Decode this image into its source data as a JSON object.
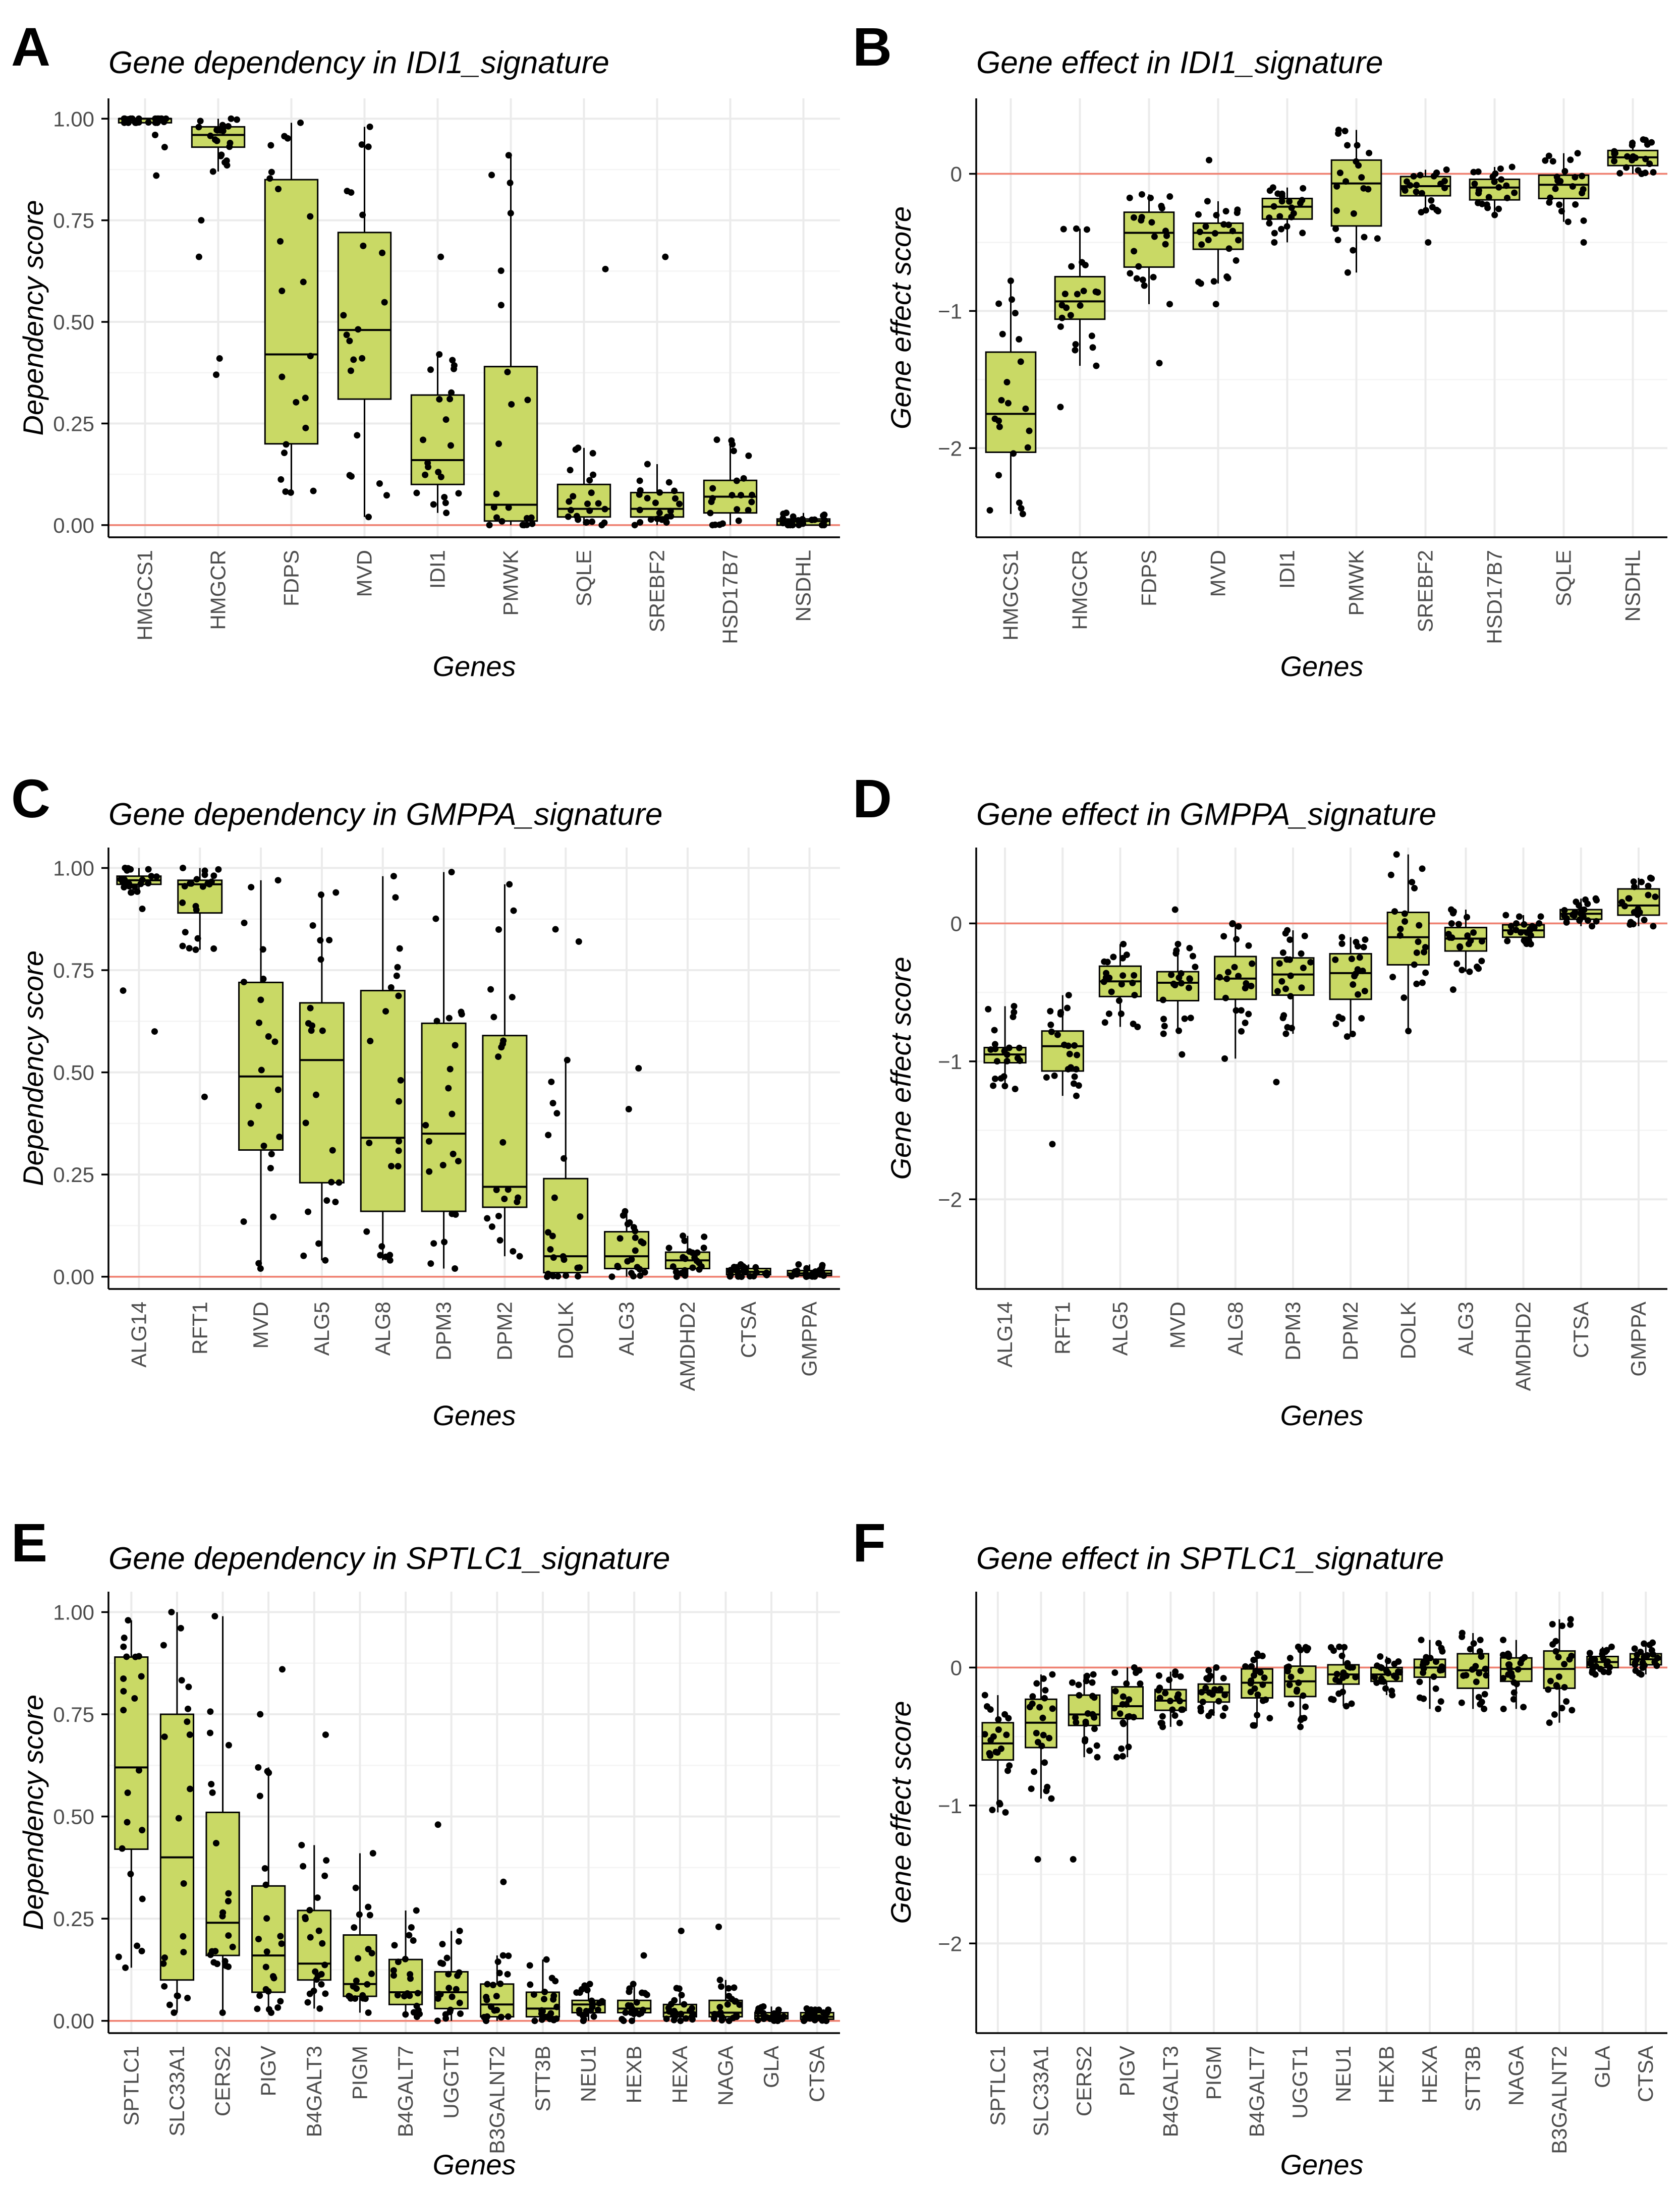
{
  "figure": {
    "colors": {
      "box_fill": "#c9d965",
      "zero_line": "#f08070",
      "points": "#000000"
    }
  },
  "chart_data": [
    {
      "panel": "A",
      "type": "box",
      "title": "Gene dependency in IDI1_signature",
      "xlabel": "Genes",
      "ylabel": "Dependency score",
      "ylim": [
        -0.03,
        1.05
      ],
      "yticks": [
        0,
        0.25,
        0.5,
        0.75,
        1.0
      ],
      "ytick_labels": [
        "0.00",
        "0.25",
        "0.50",
        "0.75",
        "1.00"
      ],
      "reference_line": 0,
      "categories": [
        "HMGCS1",
        "HMGCR",
        "FDPS",
        "MVD",
        "IDI1",
        "PMWK",
        "SQLE",
        "SREBF2",
        "HSD17B7",
        "NSDHL"
      ],
      "boxes": [
        {
          "q1": 0.99,
          "median": 1.0,
          "q3": 1.0,
          "whisker_low": 0.99,
          "whisker_high": 1.0,
          "outliers": [
            0.86,
            0.93,
            0.96
          ]
        },
        {
          "q1": 0.93,
          "median": 0.96,
          "q3": 0.98,
          "whisker_low": 0.87,
          "whisker_high": 1.0,
          "outliers": [
            0.37,
            0.41,
            0.66,
            0.75
          ]
        },
        {
          "q1": 0.2,
          "median": 0.42,
          "q3": 0.85,
          "whisker_low": 0.08,
          "whisker_high": 0.99,
          "outliers": []
        },
        {
          "q1": 0.31,
          "median": 0.48,
          "q3": 0.72,
          "whisker_low": 0.02,
          "whisker_high": 0.98,
          "outliers": []
        },
        {
          "q1": 0.1,
          "median": 0.16,
          "q3": 0.32,
          "whisker_low": 0.03,
          "whisker_high": 0.42,
          "outliers": [
            0.66
          ]
        },
        {
          "q1": 0.01,
          "median": 0.05,
          "q3": 0.39,
          "whisker_low": 0.0,
          "whisker_high": 0.91,
          "outliers": []
        },
        {
          "q1": 0.02,
          "median": 0.04,
          "q3": 0.1,
          "whisker_low": 0.0,
          "whisker_high": 0.19,
          "outliers": [
            0.63
          ]
        },
        {
          "q1": 0.02,
          "median": 0.04,
          "q3": 0.08,
          "whisker_low": 0.0,
          "whisker_high": 0.15,
          "outliers": [
            0.66
          ]
        },
        {
          "q1": 0.03,
          "median": 0.07,
          "q3": 0.11,
          "whisker_low": 0.0,
          "whisker_high": 0.21,
          "outliers": []
        },
        {
          "q1": 0.0,
          "median": 0.01,
          "q3": 0.015,
          "whisker_low": 0.0,
          "whisker_high": 0.03,
          "outliers": []
        }
      ]
    },
    {
      "panel": "B",
      "type": "box",
      "title": "Gene effect in IDI1_signature",
      "xlabel": "Genes",
      "ylabel": "Gene effect score",
      "ylim": [
        -2.65,
        0.55
      ],
      "yticks": [
        -2,
        -1,
        0
      ],
      "ytick_labels": [
        "−2",
        "−1",
        "0"
      ],
      "reference_line": 0,
      "categories": [
        "HMGCS1",
        "HMGCR",
        "FDPS",
        "MVD",
        "IDI1",
        "PMWK",
        "SREBF2",
        "HSD17B7",
        "SQLE",
        "NSDHL"
      ],
      "boxes": [
        {
          "q1": -2.03,
          "median": -1.75,
          "q3": -1.3,
          "whisker_low": -2.48,
          "whisker_high": -0.78,
          "outliers": []
        },
        {
          "q1": -1.06,
          "median": -0.93,
          "q3": -0.75,
          "whisker_low": -1.4,
          "whisker_high": -0.4,
          "outliers": [
            -1.7
          ]
        },
        {
          "q1": -0.68,
          "median": -0.43,
          "q3": -0.28,
          "whisker_low": -0.95,
          "whisker_high": -0.15,
          "outliers": [
            -1.38
          ]
        },
        {
          "q1": -0.55,
          "median": -0.43,
          "q3": -0.36,
          "whisker_low": -0.8,
          "whisker_high": -0.2,
          "outliers": [
            -0.95,
            0.1
          ]
        },
        {
          "q1": -0.33,
          "median": -0.24,
          "q3": -0.18,
          "whisker_low": -0.5,
          "whisker_high": -0.1,
          "outliers": []
        },
        {
          "q1": -0.38,
          "median": -0.07,
          "q3": 0.1,
          "whisker_low": -0.72,
          "whisker_high": 0.32,
          "outliers": []
        },
        {
          "q1": -0.16,
          "median": -0.09,
          "q3": -0.02,
          "whisker_low": -0.28,
          "whisker_high": 0.03,
          "outliers": [
            -0.5
          ]
        },
        {
          "q1": -0.19,
          "median": -0.1,
          "q3": -0.04,
          "whisker_low": -0.3,
          "whisker_high": 0.05,
          "outliers": []
        },
        {
          "q1": -0.18,
          "median": -0.08,
          "q3": -0.01,
          "whisker_low": -0.35,
          "whisker_high": 0.15,
          "outliers": [
            -0.5
          ]
        },
        {
          "q1": 0.06,
          "median": 0.12,
          "q3": 0.17,
          "whisker_low": 0.0,
          "whisker_high": 0.25,
          "outliers": []
        }
      ]
    },
    {
      "panel": "C",
      "type": "box",
      "title": "Gene dependency in GMPPA_signature",
      "xlabel": "Genes",
      "ylabel": "Dependency score",
      "ylim": [
        -0.03,
        1.05
      ],
      "yticks": [
        0,
        0.25,
        0.5,
        0.75,
        1.0
      ],
      "ytick_labels": [
        "0.00",
        "0.25",
        "0.50",
        "0.75",
        "1.00"
      ],
      "reference_line": 0,
      "categories": [
        "ALG14",
        "RFT1",
        "MVD",
        "ALG5",
        "ALG8",
        "DPM3",
        "DPM2",
        "DOLK",
        "ALG3",
        "AMDHD2",
        "CTSA",
        "GMPPA"
      ],
      "boxes": [
        {
          "q1": 0.96,
          "median": 0.97,
          "q3": 0.98,
          "whisker_low": 0.94,
          "whisker_high": 1.0,
          "outliers": [
            0.6,
            0.7,
            0.9
          ]
        },
        {
          "q1": 0.89,
          "median": 0.96,
          "q3": 0.97,
          "whisker_low": 0.8,
          "whisker_high": 1.0,
          "outliers": [
            0.44
          ]
        },
        {
          "q1": 0.31,
          "median": 0.49,
          "q3": 0.72,
          "whisker_low": 0.02,
          "whisker_high": 0.97,
          "outliers": []
        },
        {
          "q1": 0.23,
          "median": 0.53,
          "q3": 0.67,
          "whisker_low": 0.04,
          "whisker_high": 0.94,
          "outliers": []
        },
        {
          "q1": 0.16,
          "median": 0.34,
          "q3": 0.7,
          "whisker_low": 0.04,
          "whisker_high": 0.98,
          "outliers": []
        },
        {
          "q1": 0.16,
          "median": 0.35,
          "q3": 0.62,
          "whisker_low": 0.02,
          "whisker_high": 0.99,
          "outliers": []
        },
        {
          "q1": 0.17,
          "median": 0.22,
          "q3": 0.59,
          "whisker_low": 0.05,
          "whisker_high": 0.96,
          "outliers": []
        },
        {
          "q1": 0.01,
          "median": 0.05,
          "q3": 0.24,
          "whisker_low": 0.0,
          "whisker_high": 0.53,
          "outliers": [
            0.82,
            0.85
          ]
        },
        {
          "q1": 0.02,
          "median": 0.05,
          "q3": 0.11,
          "whisker_low": 0.0,
          "whisker_high": 0.16,
          "outliers": [
            0.41,
            0.51
          ]
        },
        {
          "q1": 0.02,
          "median": 0.04,
          "q3": 0.06,
          "whisker_low": 0.0,
          "whisker_high": 0.1,
          "outliers": []
        },
        {
          "q1": 0.005,
          "median": 0.012,
          "q3": 0.02,
          "whisker_low": 0.0,
          "whisker_high": 0.03,
          "outliers": []
        },
        {
          "q1": 0.003,
          "median": 0.008,
          "q3": 0.015,
          "whisker_low": 0.0,
          "whisker_high": 0.03,
          "outliers": []
        }
      ]
    },
    {
      "panel": "D",
      "type": "box",
      "title": "Gene effect in GMPPA_signature",
      "xlabel": "Genes",
      "ylabel": "Gene effect score",
      "ylim": [
        -2.65,
        0.55
      ],
      "yticks": [
        -2,
        -1,
        0
      ],
      "ytick_labels": [
        "−2",
        "−1",
        "0"
      ],
      "reference_line": 0,
      "categories": [
        "ALG14",
        "RFT1",
        "ALG5",
        "MVD",
        "ALG8",
        "DPM3",
        "DPM2",
        "DOLK",
        "ALG3",
        "AMDHD2",
        "CTSA",
        "GMPPA"
      ],
      "boxes": [
        {
          "q1": -1.01,
          "median": -0.95,
          "q3": -0.9,
          "whisker_low": -1.2,
          "whisker_high": -0.6,
          "outliers": []
        },
        {
          "q1": -1.07,
          "median": -0.89,
          "q3": -0.78,
          "whisker_low": -1.25,
          "whisker_high": -0.52,
          "outliers": [
            -1.6
          ]
        },
        {
          "q1": -0.53,
          "median": -0.42,
          "q3": -0.31,
          "whisker_low": -0.75,
          "whisker_high": -0.15,
          "outliers": []
        },
        {
          "q1": -0.56,
          "median": -0.43,
          "q3": -0.35,
          "whisker_low": -0.8,
          "whisker_high": -0.15,
          "outliers": [
            -0.95,
            0.1
          ]
        },
        {
          "q1": -0.55,
          "median": -0.4,
          "q3": -0.24,
          "whisker_low": -0.98,
          "whisker_high": 0.0,
          "outliers": []
        },
        {
          "q1": -0.52,
          "median": -0.37,
          "q3": -0.25,
          "whisker_low": -0.8,
          "whisker_high": -0.05,
          "outliers": [
            -1.15
          ]
        },
        {
          "q1": -0.55,
          "median": -0.36,
          "q3": -0.22,
          "whisker_low": -0.82,
          "whisker_high": -0.1,
          "outliers": []
        },
        {
          "q1": -0.3,
          "median": -0.1,
          "q3": 0.08,
          "whisker_low": -0.78,
          "whisker_high": 0.5,
          "outliers": []
        },
        {
          "q1": -0.2,
          "median": -0.11,
          "q3": -0.03,
          "whisker_low": -0.35,
          "whisker_high": 0.1,
          "outliers": [
            -0.48
          ]
        },
        {
          "q1": -0.1,
          "median": -0.05,
          "q3": -0.01,
          "whisker_low": -0.15,
          "whisker_high": 0.06,
          "outliers": []
        },
        {
          "q1": 0.03,
          "median": 0.07,
          "q3": 0.1,
          "whisker_low": -0.02,
          "whisker_high": 0.18,
          "outliers": []
        },
        {
          "q1": 0.06,
          "median": 0.13,
          "q3": 0.25,
          "whisker_low": -0.02,
          "whisker_high": 0.33,
          "outliers": []
        }
      ]
    },
    {
      "panel": "E",
      "type": "box",
      "title": "Gene dependency in SPTLC1_signature",
      "xlabel": "Genes",
      "ylabel": "Dependency score",
      "ylim": [
        -0.03,
        1.05
      ],
      "yticks": [
        0,
        0.25,
        0.5,
        0.75,
        1.0
      ],
      "ytick_labels": [
        "0.00",
        "0.25",
        "0.50",
        "0.75",
        "1.00"
      ],
      "reference_line": 0,
      "categories": [
        "SPTLC1",
        "SLC33A1",
        "CERS2",
        "PIGV",
        "B4GALT3",
        "PIGM",
        "B4GALT7",
        "UGGT1",
        "B3GALNT2",
        "STT3B",
        "NEU1",
        "HEXB",
        "HEXA",
        "NAGA",
        "GLA",
        "CTSA"
      ],
      "boxes": [
        {
          "q1": 0.42,
          "median": 0.62,
          "q3": 0.89,
          "whisker_low": 0.13,
          "whisker_high": 0.98,
          "outliers": []
        },
        {
          "q1": 0.1,
          "median": 0.4,
          "q3": 0.75,
          "whisker_low": 0.02,
          "whisker_high": 1.0,
          "outliers": []
        },
        {
          "q1": 0.16,
          "median": 0.24,
          "q3": 0.51,
          "whisker_low": 0.02,
          "whisker_high": 0.99,
          "outliers": []
        },
        {
          "q1": 0.07,
          "median": 0.16,
          "q3": 0.33,
          "whisker_low": 0.02,
          "whisker_high": 0.62,
          "outliers": [
            0.75,
            0.86
          ]
        },
        {
          "q1": 0.1,
          "median": 0.14,
          "q3": 0.27,
          "whisker_low": 0.03,
          "whisker_high": 0.43,
          "outliers": [
            0.7
          ]
        },
        {
          "q1": 0.06,
          "median": 0.09,
          "q3": 0.21,
          "whisker_low": 0.02,
          "whisker_high": 0.41,
          "outliers": []
        },
        {
          "q1": 0.04,
          "median": 0.07,
          "q3": 0.15,
          "whisker_low": 0.01,
          "whisker_high": 0.27,
          "outliers": []
        },
        {
          "q1": 0.03,
          "median": 0.07,
          "q3": 0.12,
          "whisker_low": 0.0,
          "whisker_high": 0.22,
          "outliers": [
            0.48
          ]
        },
        {
          "q1": 0.01,
          "median": 0.04,
          "q3": 0.09,
          "whisker_low": 0.0,
          "whisker_high": 0.16,
          "outliers": [
            0.34
          ]
        },
        {
          "q1": 0.01,
          "median": 0.03,
          "q3": 0.07,
          "whisker_low": 0.0,
          "whisker_high": 0.15,
          "outliers": []
        },
        {
          "q1": 0.02,
          "median": 0.04,
          "q3": 0.05,
          "whisker_low": 0.0,
          "whisker_high": 0.09,
          "outliers": []
        },
        {
          "q1": 0.02,
          "median": 0.03,
          "q3": 0.05,
          "whisker_low": 0.0,
          "whisker_high": 0.09,
          "outliers": [
            0.16
          ]
        },
        {
          "q1": 0.01,
          "median": 0.02,
          "q3": 0.04,
          "whisker_low": 0.0,
          "whisker_high": 0.08,
          "outliers": [
            0.22
          ]
        },
        {
          "q1": 0.01,
          "median": 0.02,
          "q3": 0.05,
          "whisker_low": 0.0,
          "whisker_high": 0.1,
          "outliers": [
            0.23
          ]
        },
        {
          "q1": 0.005,
          "median": 0.012,
          "q3": 0.02,
          "whisker_low": 0.0,
          "whisker_high": 0.035,
          "outliers": []
        },
        {
          "q1": 0.004,
          "median": 0.01,
          "q3": 0.02,
          "whisker_low": 0.0,
          "whisker_high": 0.03,
          "outliers": []
        }
      ]
    },
    {
      "panel": "F",
      "type": "box",
      "title": "Gene effect in SPTLC1_signature",
      "xlabel": "Genes",
      "ylabel": "Gene effect score",
      "ylim": [
        -2.65,
        0.55
      ],
      "yticks": [
        -2,
        -1,
        0
      ],
      "ytick_labels": [
        "−2",
        "−1",
        "0"
      ],
      "reference_line": 0,
      "categories": [
        "SPTLC1",
        "SLC33A1",
        "CERS2",
        "PIGV",
        "B4GALT3",
        "PIGM",
        "B4GALT7",
        "UGGT1",
        "NEU1",
        "HEXB",
        "HEXA",
        "STT3B",
        "NAGA",
        "B3GALNT2",
        "GLA",
        "CTSA"
      ],
      "boxes": [
        {
          "q1": -0.67,
          "median": -0.55,
          "q3": -0.4,
          "whisker_low": -1.05,
          "whisker_high": -0.2,
          "outliers": []
        },
        {
          "q1": -0.58,
          "median": -0.4,
          "q3": -0.23,
          "whisker_low": -0.95,
          "whisker_high": -0.05,
          "outliers": [
            -1.39
          ]
        },
        {
          "q1": -0.42,
          "median": -0.34,
          "q3": -0.2,
          "whisker_low": -0.65,
          "whisker_high": -0.05,
          "outliers": [
            -1.39
          ]
        },
        {
          "q1": -0.37,
          "median": -0.28,
          "q3": -0.14,
          "whisker_low": -0.65,
          "whisker_high": 0.0,
          "outliers": []
        },
        {
          "q1": -0.31,
          "median": -0.24,
          "q3": -0.16,
          "whisker_low": -0.43,
          "whisker_high": -0.03,
          "outliers": []
        },
        {
          "q1": -0.25,
          "median": -0.18,
          "q3": -0.12,
          "whisker_low": -0.35,
          "whisker_high": 0.0,
          "outliers": []
        },
        {
          "q1": -0.22,
          "median": -0.11,
          "q3": -0.01,
          "whisker_low": -0.42,
          "whisker_high": 0.1,
          "outliers": []
        },
        {
          "q1": -0.21,
          "median": -0.1,
          "q3": 0.01,
          "whisker_low": -0.43,
          "whisker_high": 0.15,
          "outliers": []
        },
        {
          "q1": -0.12,
          "median": -0.05,
          "q3": 0.02,
          "whisker_low": -0.28,
          "whisker_high": 0.15,
          "outliers": []
        },
        {
          "q1": -0.1,
          "median": -0.05,
          "q3": 0.0,
          "whisker_low": -0.2,
          "whisker_high": 0.08,
          "outliers": []
        },
        {
          "q1": -0.07,
          "median": 0.0,
          "q3": 0.06,
          "whisker_low": -0.3,
          "whisker_high": 0.2,
          "outliers": []
        },
        {
          "q1": -0.15,
          "median": -0.02,
          "q3": 0.1,
          "whisker_low": -0.3,
          "whisker_high": 0.25,
          "outliers": []
        },
        {
          "q1": -0.1,
          "median": -0.01,
          "q3": 0.07,
          "whisker_low": -0.3,
          "whisker_high": 0.2,
          "outliers": []
        },
        {
          "q1": -0.15,
          "median": -0.01,
          "q3": 0.12,
          "whisker_low": -0.4,
          "whisker_high": 0.35,
          "outliers": []
        },
        {
          "q1": 0.0,
          "median": 0.04,
          "q3": 0.08,
          "whisker_low": -0.05,
          "whisker_high": 0.15,
          "outliers": []
        },
        {
          "q1": 0.02,
          "median": 0.06,
          "q3": 0.1,
          "whisker_low": -0.05,
          "whisker_high": 0.18,
          "outliers": []
        }
      ]
    }
  ]
}
